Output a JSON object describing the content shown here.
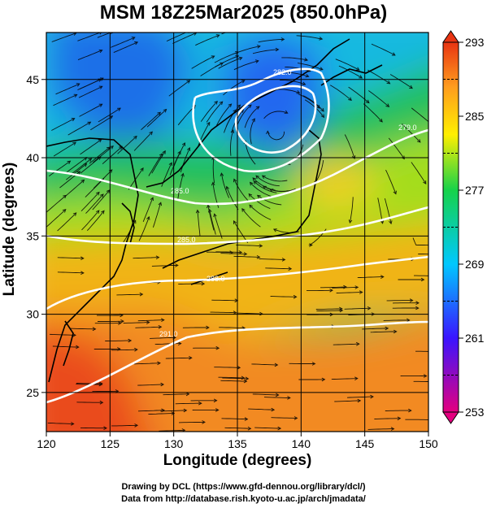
{
  "title": "MSM 18Z25Mar2025 (850.0hPa)",
  "xaxis": {
    "label": "Longitude (degrees)",
    "range": [
      120,
      150
    ],
    "ticks": [
      "120",
      "125",
      "130",
      "135",
      "140",
      "145",
      "150"
    ]
  },
  "yaxis": {
    "label": "Latitude  (degrees)",
    "range": [
      22.5,
      48
    ],
    "ticks": [
      "25",
      "30",
      "35",
      "40",
      "45"
    ]
  },
  "colorbar": {
    "range": [
      253,
      293
    ],
    "labels": [
      "293",
      "285",
      "277",
      "269",
      "261",
      "253"
    ],
    "colors": [
      "#e4007f",
      "#3a14ff",
      "#00c8ff",
      "#16d24a",
      "#ffef00",
      "#ff9c1e",
      "#e83412"
    ]
  },
  "contours": [
    {
      "label": "282.0"
    },
    {
      "label": "279.0"
    },
    {
      "label": "285.0"
    },
    {
      "label": "285.0"
    },
    {
      "label": "288.0"
    },
    {
      "label": "291.0"
    }
  ],
  "credits": {
    "line1": "Drawing by DCL (https://www.gfd-dennou.org/library/dcl/)",
    "line2": "Data from http://database.rish.kyoto-u.ac.jp/arch/jmadata/"
  }
}
